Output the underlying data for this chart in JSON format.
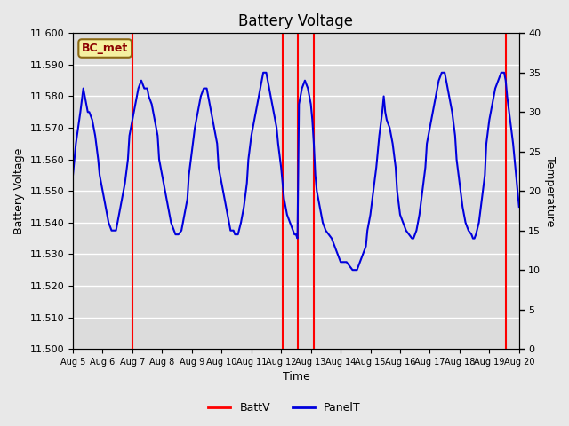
{
  "title": "Battery Voltage",
  "xlabel": "Time",
  "ylabel_left": "Battery Voltage",
  "ylabel_right": "Temperature",
  "ylim_left": [
    11.5,
    11.6
  ],
  "ylim_right": [
    0,
    40
  ],
  "background_color": "#e8e8e8",
  "plot_bg_color": "#dcdcdc",
  "label_box_text": "BC_met",
  "label_box_bg": "#f5f0a0",
  "label_box_edge": "#8b6914",
  "red_line_color": "#ff0000",
  "blue_line_color": "#0000dd",
  "legend_labels": [
    "BattV",
    "PanelT"
  ],
  "legend_colors": [
    "#ff0000",
    "#0000dd"
  ],
  "x_tick_labels": [
    "Aug 5",
    "Aug 6",
    "Aug 7",
    "Aug 8",
    "Aug 9",
    "Aug 10",
    "Aug 11",
    "Aug 12",
    "Aug 13",
    "Aug 14",
    "Aug 15",
    "Aug 16",
    "Aug 17",
    "Aug 18",
    "Aug 19",
    "Aug 20"
  ],
  "x_tick_positions": [
    0,
    1,
    2,
    3,
    4,
    5,
    6,
    7,
    8,
    9,
    10,
    11,
    12,
    13,
    14,
    15
  ],
  "xlim": [
    0,
    15
  ],
  "red_vlines": [
    2.0,
    7.05,
    7.55,
    8.1,
    14.55
  ],
  "panel_temp_x": [
    0.0,
    0.1,
    0.25,
    0.35,
    0.45,
    0.5,
    0.55,
    0.65,
    0.75,
    0.85,
    0.9,
    1.0,
    1.1,
    1.2,
    1.3,
    1.4,
    1.45,
    1.5,
    1.55,
    1.65,
    1.75,
    1.85,
    1.9,
    2.0,
    2.1,
    2.2,
    2.3,
    2.4,
    2.45,
    2.5,
    2.55,
    2.65,
    2.75,
    2.85,
    2.9,
    3.0,
    3.1,
    3.2,
    3.3,
    3.4,
    3.45,
    3.5,
    3.55,
    3.65,
    3.75,
    3.85,
    3.9,
    4.0,
    4.1,
    4.2,
    4.3,
    4.4,
    4.45,
    4.5,
    4.55,
    4.65,
    4.75,
    4.85,
    4.9,
    5.0,
    5.1,
    5.2,
    5.3,
    5.4,
    5.45,
    5.5,
    5.55,
    5.65,
    5.75,
    5.85,
    5.9,
    6.0,
    6.1,
    6.2,
    6.3,
    6.4,
    6.45,
    6.5,
    6.55,
    6.65,
    6.75,
    6.85,
    6.9,
    7.0,
    7.05,
    7.1,
    7.2,
    7.3,
    7.4,
    7.45,
    7.5,
    7.55,
    7.6,
    7.7,
    7.8,
    7.9,
    8.0,
    8.05,
    8.1,
    8.15,
    8.2,
    8.3,
    8.4,
    8.5,
    8.6,
    8.7,
    8.8,
    8.9,
    9.0,
    9.1,
    9.2,
    9.3,
    9.4,
    9.45,
    9.5,
    9.55,
    9.65,
    9.75,
    9.85,
    9.9,
    10.0,
    10.1,
    10.2,
    10.3,
    10.4,
    10.45,
    10.5,
    10.55,
    10.65,
    10.75,
    10.85,
    10.9,
    11.0,
    11.1,
    11.2,
    11.3,
    11.4,
    11.45,
    11.5,
    11.55,
    11.65,
    11.75,
    11.85,
    11.9,
    12.0,
    12.1,
    12.2,
    12.3,
    12.4,
    12.45,
    12.5,
    12.55,
    12.65,
    12.75,
    12.85,
    12.9,
    13.0,
    13.1,
    13.2,
    13.3,
    13.4,
    13.45,
    13.5,
    13.55,
    13.65,
    13.75,
    13.85,
    13.9,
    14.0,
    14.1,
    14.2,
    14.3,
    14.4,
    14.45,
    14.5,
    14.55,
    14.6,
    14.7,
    14.8,
    14.9,
    15.0
  ],
  "panel_temp_y": [
    22,
    26,
    30,
    33,
    31,
    30,
    30,
    29,
    27,
    24,
    22,
    20,
    18,
    16,
    15,
    15,
    15,
    16,
    17,
    19,
    21,
    24,
    27,
    29,
    31,
    33,
    34,
    33,
    33,
    33,
    32,
    31,
    29,
    27,
    24,
    22,
    20,
    18,
    16,
    15,
    14.5,
    14.5,
    14.5,
    15,
    17,
    19,
    22,
    25,
    28,
    30,
    32,
    33,
    33,
    33,
    32,
    30,
    28,
    26,
    23,
    21,
    19,
    17,
    15,
    15,
    14.5,
    14.5,
    14.5,
    16,
    18,
    21,
    24,
    27,
    29,
    31,
    33,
    35,
    35,
    35,
    34,
    32,
    30,
    28,
    26,
    23,
    21,
    19,
    17,
    16,
    15,
    14.5,
    14.5,
    14,
    31,
    33,
    34,
    33,
    31,
    29,
    26,
    22,
    20,
    18,
    16,
    15,
    14.5,
    14,
    13,
    12,
    11,
    11,
    11,
    10.5,
    10,
    10,
    10,
    10,
    11,
    12,
    13,
    15,
    17,
    20,
    23,
    27,
    30,
    32,
    30,
    29,
    28,
    26,
    23,
    20,
    17,
    16,
    15,
    14.5,
    14,
    14,
    14.5,
    15,
    17,
    20,
    23,
    26,
    28,
    30,
    32,
    34,
    35,
    35,
    35,
    34,
    32,
    30,
    27,
    24,
    21,
    18,
    16,
    15,
    14.5,
    14,
    14,
    14.5,
    16,
    19,
    22,
    26,
    29,
    31,
    33,
    34,
    35,
    35,
    35,
    34,
    32,
    29,
    26,
    22,
    18
  ]
}
